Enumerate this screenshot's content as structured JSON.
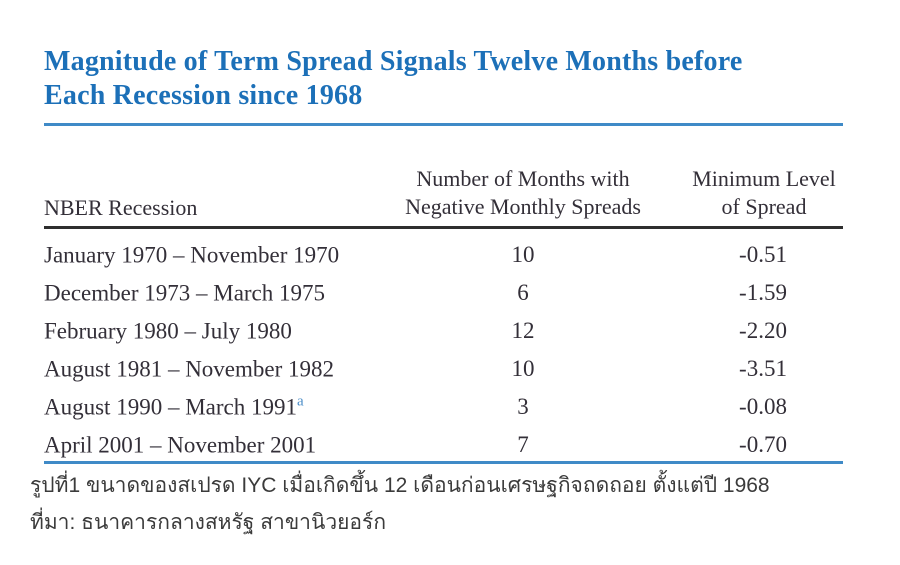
{
  "title": {
    "line1": "Magnitude of Term Spread Signals Twelve Months before",
    "line2": "Each Recession since 1968"
  },
  "table": {
    "headers": {
      "col1": "NBER Recession",
      "col2_line1": "Number of Months with",
      "col2_line2": "Negative Monthly Spreads",
      "col3_line1": "Minimum Level",
      "col3_line2": "of Spread"
    },
    "rows": [
      {
        "period": "January 1970 – November 1970",
        "sup": "",
        "months": "10",
        "min_spread": "-0.51"
      },
      {
        "period": "December 1973 – March 1975",
        "sup": "",
        "months": "6",
        "min_spread": "-1.59"
      },
      {
        "period": "February 1980 – July 1980",
        "sup": "",
        "months": "12",
        "min_spread": "-2.20"
      },
      {
        "period": "August 1981 – November 1982",
        "sup": "",
        "months": "10",
        "min_spread": "-3.51"
      },
      {
        "period": "August 1990 – March 1991",
        "sup": "a",
        "months": "3",
        "min_spread": "-0.08"
      },
      {
        "period": "April 2001 – November 2001",
        "sup": "",
        "months": "7",
        "min_spread": "-0.70"
      }
    ]
  },
  "caption": {
    "line1": "รูปที่1 ขนาดของสเปรด IYC เมื่อเกิดขึ้น 12 เดือนก่อนเศรษฐกิจถดถอย ตั้งแต่ปี 1968",
    "line2": "ที่มา: ธนาคารกลางสหรัฐ สาขานิวยอร์ก"
  },
  "colors": {
    "title_blue": "#1c70b8",
    "rule_blue": "#3f8ac7",
    "rule_dark": "#2e2e2e",
    "table_text": "#332f38",
    "superscript_blue": "#4a8cc7",
    "caption_text": "#3b3b3b",
    "background": "#ffffff"
  }
}
